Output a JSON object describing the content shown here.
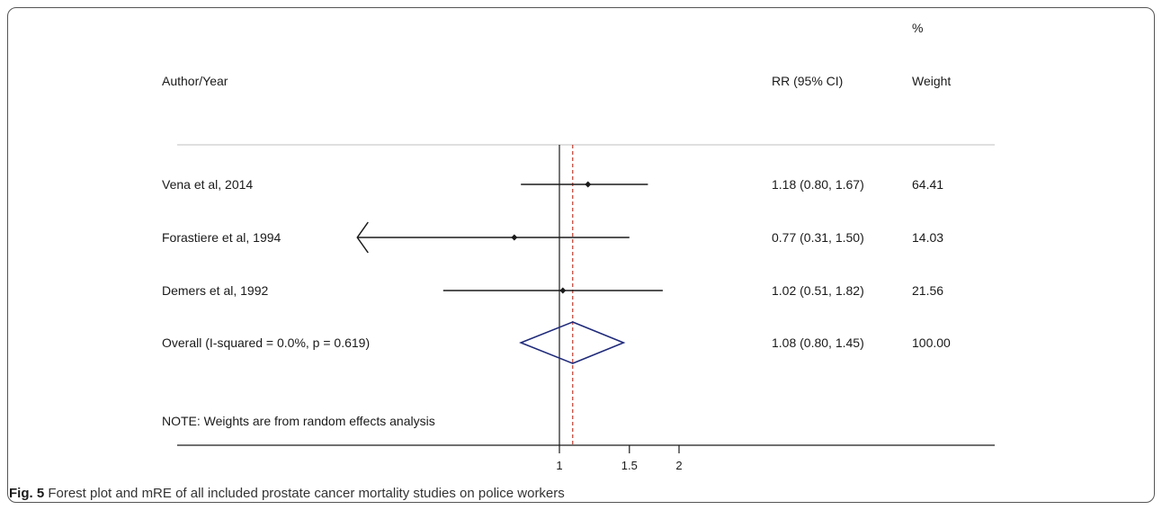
{
  "chart_data": {
    "type": "forest",
    "xscale": "log",
    "header": {
      "study_label": "Author/Year",
      "rr_label": "RR (95% CI)",
      "weight_label_top": "%",
      "weight_label": "Weight"
    },
    "studies": [
      {
        "label": "Vena et al, 2014",
        "rr": 1.18,
        "lo": 0.8,
        "hi": 1.67,
        "rr_text": "1.18 (0.80, 1.67)",
        "weight": "64.41",
        "arrow_left": false
      },
      {
        "label": "Forastiere et al, 1994",
        "rr": 0.77,
        "lo": 0.31,
        "hi": 1.5,
        "rr_text": "0.77 (0.31, 1.50)",
        "weight": "14.03",
        "arrow_left": true
      },
      {
        "label": "Demers et al, 1992",
        "rr": 1.02,
        "lo": 0.51,
        "hi": 1.82,
        "rr_text": "1.02 (0.51, 1.82)",
        "weight": "21.56",
        "arrow_left": false
      }
    ],
    "overall": {
      "label": "Overall  (I-squared = 0.0%, p = 0.619)",
      "rr": 1.08,
      "lo": 0.8,
      "hi": 1.45,
      "rr_text": "1.08 (0.80, 1.45)",
      "weight": "100.00"
    },
    "note": "NOTE: Weights are from random effects analysis",
    "null_line": 1,
    "xticks": [
      1,
      1.5,
      2
    ],
    "xtick_labels": [
      "1",
      "1.5",
      "2"
    ],
    "colors": {
      "diamond": "#1f2a7a",
      "pooled_line": "#c0392b",
      "axis": "#1a1a1a"
    }
  },
  "caption": {
    "fig_label": "Fig. 5",
    "text": " Forest plot and mRE of all included prostate cancer mortality studies on police workers"
  }
}
